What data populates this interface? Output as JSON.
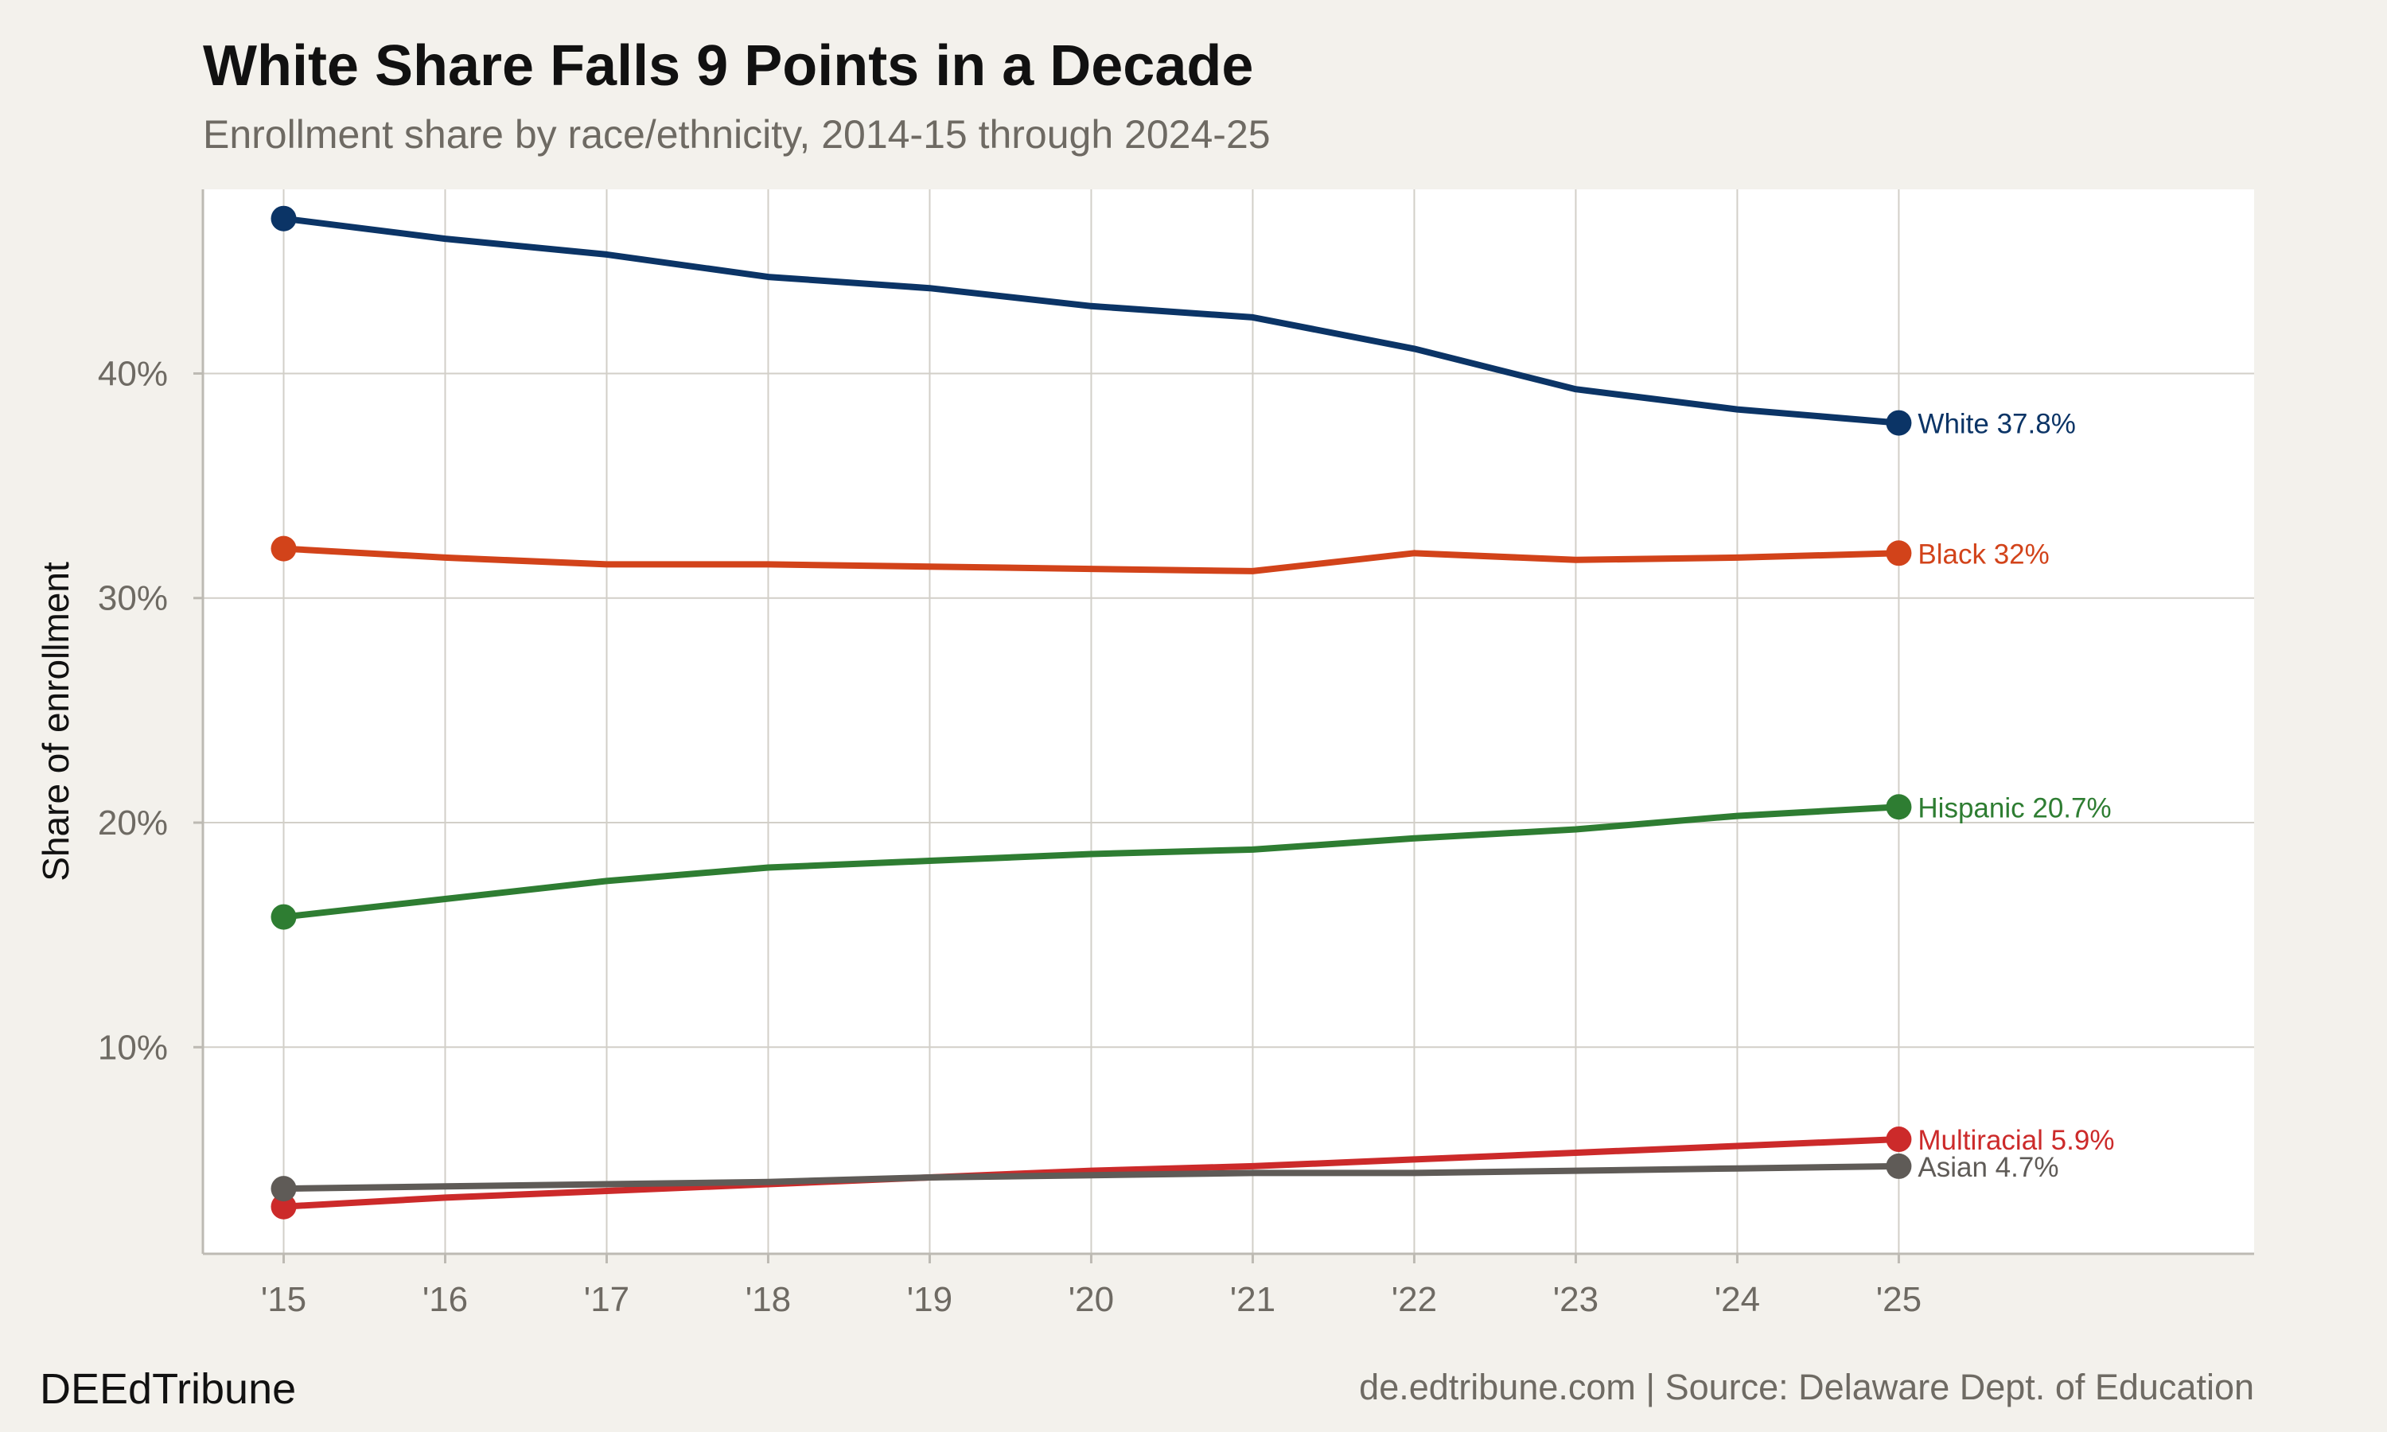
{
  "chart_data": {
    "type": "line",
    "title": "White Share Falls 9 Points in a Decade",
    "subtitle": "Enrollment share by race/ethnicity, 2014-15 through 2024-25",
    "xlabel": "",
    "ylabel": "Share of enrollment",
    "x": [
      2015,
      2016,
      2017,
      2018,
      2019,
      2020,
      2021,
      2022,
      2023,
      2024,
      2025
    ],
    "x_tick_labels": [
      "'15",
      "'16",
      "'17",
      "'18",
      "'19",
      "'20",
      "'21",
      "'22",
      "'23",
      "'24",
      "'25"
    ],
    "y_ticks": [
      10,
      20,
      30,
      40
    ],
    "y_tick_labels": [
      "10%",
      "20%",
      "30%",
      "40%"
    ],
    "ylim": [
      0.8,
      48.2
    ],
    "xlim": [
      2014.5,
      2027.2
    ],
    "grid": true,
    "legend": "direct labels at right end of each line",
    "series": [
      {
        "name": "White",
        "color": "#0b3466",
        "end_label": "White 37.8%",
        "values": [
          46.9,
          46.0,
          45.3,
          44.3,
          43.8,
          43.0,
          42.5,
          41.1,
          39.3,
          38.4,
          37.8
        ]
      },
      {
        "name": "Black",
        "color": "#d2431a",
        "end_label": "Black 32%",
        "values": [
          32.2,
          31.8,
          31.5,
          31.5,
          31.4,
          31.3,
          31.2,
          32.0,
          31.7,
          31.8,
          32.0
        ]
      },
      {
        "name": "Hispanic",
        "color": "#2e7d32",
        "end_label": "Hispanic 20.7%",
        "values": [
          15.8,
          16.6,
          17.4,
          18.0,
          18.3,
          18.6,
          18.8,
          19.3,
          19.7,
          20.3,
          20.7
        ]
      },
      {
        "name": "Multiracial",
        "color": "#cc2a2a",
        "end_label": "Multiracial 5.9%",
        "values": [
          2.9,
          3.3,
          3.6,
          3.9,
          4.2,
          4.5,
          4.7,
          5.0,
          5.3,
          5.6,
          5.9
        ]
      },
      {
        "name": "Asian",
        "color": "#5f5b57",
        "end_label": "Asian 4.7%",
        "values": [
          3.7,
          3.8,
          3.9,
          4.0,
          4.2,
          4.3,
          4.4,
          4.4,
          4.5,
          4.6,
          4.7
        ]
      }
    ]
  },
  "footer": {
    "brand": "DEEdTribune",
    "source": "de.edtribune.com | Source: Delaware Dept. of Education"
  }
}
